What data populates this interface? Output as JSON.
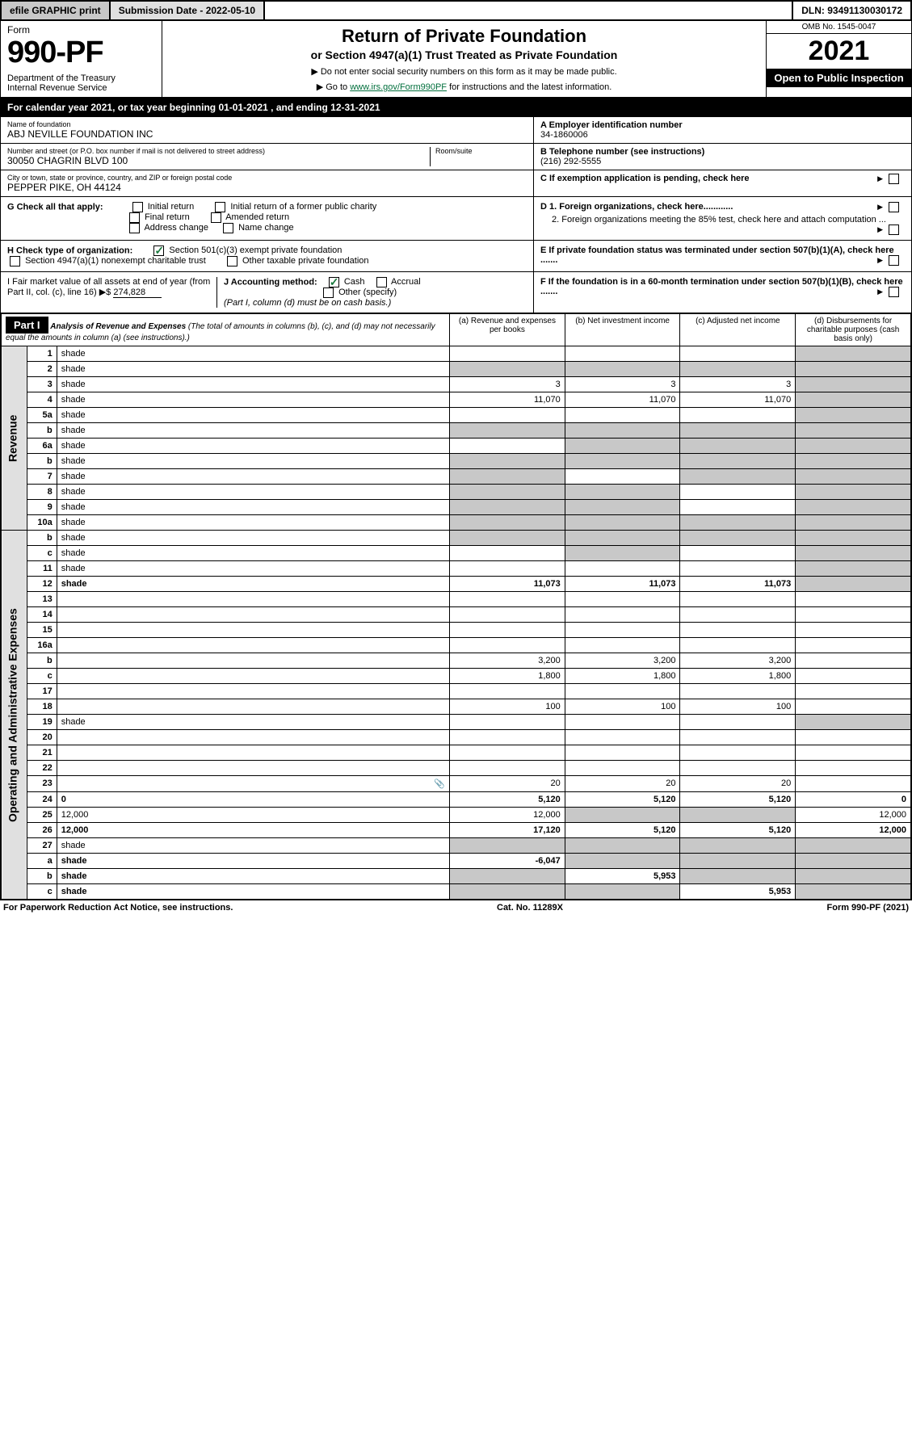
{
  "topbar": {
    "efile": "efile GRAPHIC print",
    "submission": "Submission Date - 2022-05-10",
    "dln": "DLN: 93491130030172"
  },
  "header": {
    "form_label": "Form",
    "form_num": "990-PF",
    "dept": "Department of the Treasury",
    "irs": "Internal Revenue Service",
    "title": "Return of Private Foundation",
    "subtitle": "or Section 4947(a)(1) Trust Treated as Private Foundation",
    "note1": "▶ Do not enter social security numbers on this form as it may be made public.",
    "note2_pre": "▶ Go to ",
    "note2_link": "www.irs.gov/Form990PF",
    "note2_post": " for instructions and the latest information.",
    "omb": "OMB No. 1545-0047",
    "year": "2021",
    "inspect": "Open to Public Inspection"
  },
  "cal": "For calendar year 2021, or tax year beginning 01-01-2021                                    , and ending 12-31-2021",
  "id": {
    "name_lbl": "Name of foundation",
    "name": "ABJ NEVILLE FOUNDATION INC",
    "addr_lbl": "Number and street (or P.O. box number if mail is not delivered to street address)",
    "addr": "30050 CHAGRIN BLVD 100",
    "room_lbl": "Room/suite",
    "city_lbl": "City or town, state or province, country, and ZIP or foreign postal code",
    "city": "PEPPER PIKE, OH  44124",
    "a_lbl": "A Employer identification number",
    "a_val": "34-1860006",
    "b_lbl": "B Telephone number (see instructions)",
    "b_val": "(216) 292-5555",
    "c_lbl": "C If exemption application is pending, check here"
  },
  "g": {
    "label": "G Check all that apply:",
    "opts": [
      "Initial return",
      "Initial return of a former public charity",
      "Final return",
      "Amended return",
      "Address change",
      "Name change"
    ]
  },
  "h": {
    "label": "H Check type of organization:",
    "opt1": "Section 501(c)(3) exempt private foundation",
    "opt2": "Section 4947(a)(1) nonexempt charitable trust",
    "opt3": "Other taxable private foundation"
  },
  "d": {
    "d1": "D 1. Foreign organizations, check here............",
    "d2": "2. Foreign organizations meeting the 85% test, check here and attach computation ..."
  },
  "e": "E  If private foundation status was terminated under section 507(b)(1)(A), check here .......",
  "f": "F  If the foundation is in a 60-month termination under section 507(b)(1)(B), check here .......",
  "i": {
    "label": "I Fair market value of all assets at end of year (from Part II, col. (c), line 16) ▶$",
    "val": "274,828"
  },
  "j": {
    "label": "J Accounting method:",
    "cash": "Cash",
    "accrual": "Accrual",
    "other": "Other (specify)",
    "note": "(Part I, column (d) must be on cash basis.)"
  },
  "part1": {
    "label": "Part I",
    "title": "Analysis of Revenue and Expenses",
    "note": "(The total of amounts in columns (b), (c), and (d) may not necessarily equal the amounts in column (a) (see instructions).)"
  },
  "cols": {
    "a": "(a)   Revenue and expenses per books",
    "b": "(b)   Net investment income",
    "c": "(c)   Adjusted net income",
    "d": "(d)   Disbursements for charitable purposes (cash basis only)"
  },
  "sides": {
    "rev": "Revenue",
    "exp": "Operating and Administrative Expenses"
  },
  "rows": [
    {
      "n": "1",
      "d": "shade",
      "a": "",
      "b": "",
      "c": ""
    },
    {
      "n": "2",
      "d": "shade",
      "a": "shade",
      "b": "shade",
      "c": "shade"
    },
    {
      "n": "3",
      "d": "shade",
      "a": "3",
      "b": "3",
      "c": "3"
    },
    {
      "n": "4",
      "d": "shade",
      "a": "11,070",
      "b": "11,070",
      "c": "11,070"
    },
    {
      "n": "5a",
      "d": "shade",
      "a": "",
      "b": "",
      "c": ""
    },
    {
      "n": "b",
      "d": "shade",
      "a": "shade",
      "b": "shade",
      "c": "shade"
    },
    {
      "n": "6a",
      "d": "shade",
      "a": "",
      "b": "shade",
      "c": "shade"
    },
    {
      "n": "b",
      "d": "shade",
      "a": "shade",
      "b": "shade",
      "c": "shade"
    },
    {
      "n": "7",
      "d": "shade",
      "a": "shade",
      "b": "",
      "c": "shade"
    },
    {
      "n": "8",
      "d": "shade",
      "a": "shade",
      "b": "shade",
      "c": ""
    },
    {
      "n": "9",
      "d": "shade",
      "a": "shade",
      "b": "shade",
      "c": ""
    },
    {
      "n": "10a",
      "d": "shade",
      "a": "shade",
      "b": "shade",
      "c": "shade"
    },
    {
      "n": "b",
      "d": "shade",
      "a": "shade",
      "b": "shade",
      "c": "shade"
    },
    {
      "n": "c",
      "d": "shade",
      "a": "",
      "b": "shade",
      "c": ""
    },
    {
      "n": "11",
      "d": "shade",
      "a": "",
      "b": "",
      "c": ""
    },
    {
      "n": "12",
      "d": "shade",
      "a": "11,073",
      "b": "11,073",
      "c": "11,073",
      "bold": true
    },
    {
      "n": "13",
      "d": "",
      "a": "",
      "b": "",
      "c": ""
    },
    {
      "n": "14",
      "d": "",
      "a": "",
      "b": "",
      "c": ""
    },
    {
      "n": "15",
      "d": "",
      "a": "",
      "b": "",
      "c": ""
    },
    {
      "n": "16a",
      "d": "",
      "a": "",
      "b": "",
      "c": ""
    },
    {
      "n": "b",
      "d": "",
      "a": "3,200",
      "b": "3,200",
      "c": "3,200"
    },
    {
      "n": "c",
      "d": "",
      "a": "1,800",
      "b": "1,800",
      "c": "1,800"
    },
    {
      "n": "17",
      "d": "",
      "a": "",
      "b": "",
      "c": ""
    },
    {
      "n": "18",
      "d": "",
      "a": "100",
      "b": "100",
      "c": "100"
    },
    {
      "n": "19",
      "d": "shade",
      "a": "",
      "b": "",
      "c": ""
    },
    {
      "n": "20",
      "d": "",
      "a": "",
      "b": "",
      "c": ""
    },
    {
      "n": "21",
      "d": "",
      "a": "",
      "b": "",
      "c": ""
    },
    {
      "n": "22",
      "d": "",
      "a": "",
      "b": "",
      "c": ""
    },
    {
      "n": "23",
      "d": "",
      "a": "20",
      "b": "20",
      "c": "20",
      "icon": true
    },
    {
      "n": "24",
      "d": "0",
      "a": "5,120",
      "b": "5,120",
      "c": "5,120",
      "bold": true
    },
    {
      "n": "25",
      "d": "12,000",
      "a": "12,000",
      "b": "shade",
      "c": "shade"
    },
    {
      "n": "26",
      "d": "12,000",
      "a": "17,120",
      "b": "5,120",
      "c": "5,120",
      "bold": true
    },
    {
      "n": "27",
      "d": "shade",
      "a": "shade",
      "b": "shade",
      "c": "shade"
    },
    {
      "n": "a",
      "d": "shade",
      "a": "-6,047",
      "b": "shade",
      "c": "shade",
      "bold": true
    },
    {
      "n": "b",
      "d": "shade",
      "a": "shade",
      "b": "5,953",
      "c": "shade",
      "bold": true
    },
    {
      "n": "c",
      "d": "shade",
      "a": "shade",
      "b": "shade",
      "c": "5,953",
      "bold": true
    }
  ],
  "footer": {
    "left": "For Paperwork Reduction Act Notice, see instructions.",
    "mid": "Cat. No. 11289X",
    "right": "Form 990-PF (2021)"
  }
}
